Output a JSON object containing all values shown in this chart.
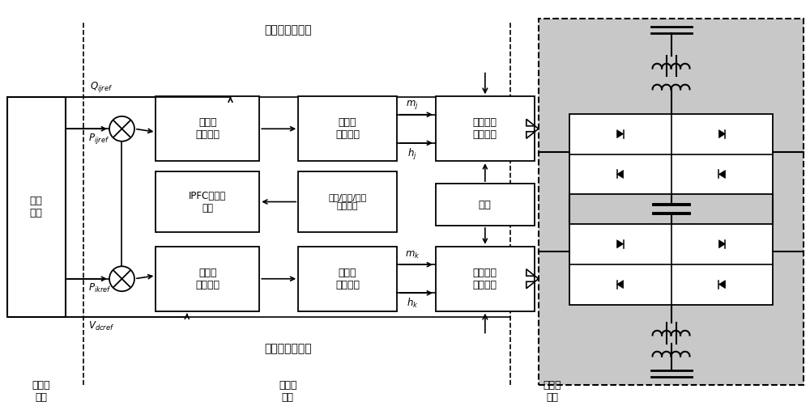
{
  "bg_color": "#ffffff",
  "main_title_top": "主控侧控制策略",
  "sub_title_bottom": "辅控侧控制策略",
  "label_scheduling": "调度\n中心",
  "label_sched_level": "调度级\n控制",
  "label_sys_level": "系统级\n控制",
  "label_device_level": "装置级\n控制",
  "label_master_compare": "主控侧\n比较单元",
  "label_master_controller": "主控侧\n主控制器",
  "label_ipfc": "IPFC调制控\n制器",
  "label_power_detect": "功率/功角/频率\n振荡检测",
  "label_slave_compare": "辅控侧\n比较单元",
  "label_slave_controller": "辅助侧\n主控制器",
  "label_pulse_upper": "脉冲触发\n启动单元",
  "label_pulse_lower": "脉冲触发\n启动单元",
  "label_protect": "保护"
}
